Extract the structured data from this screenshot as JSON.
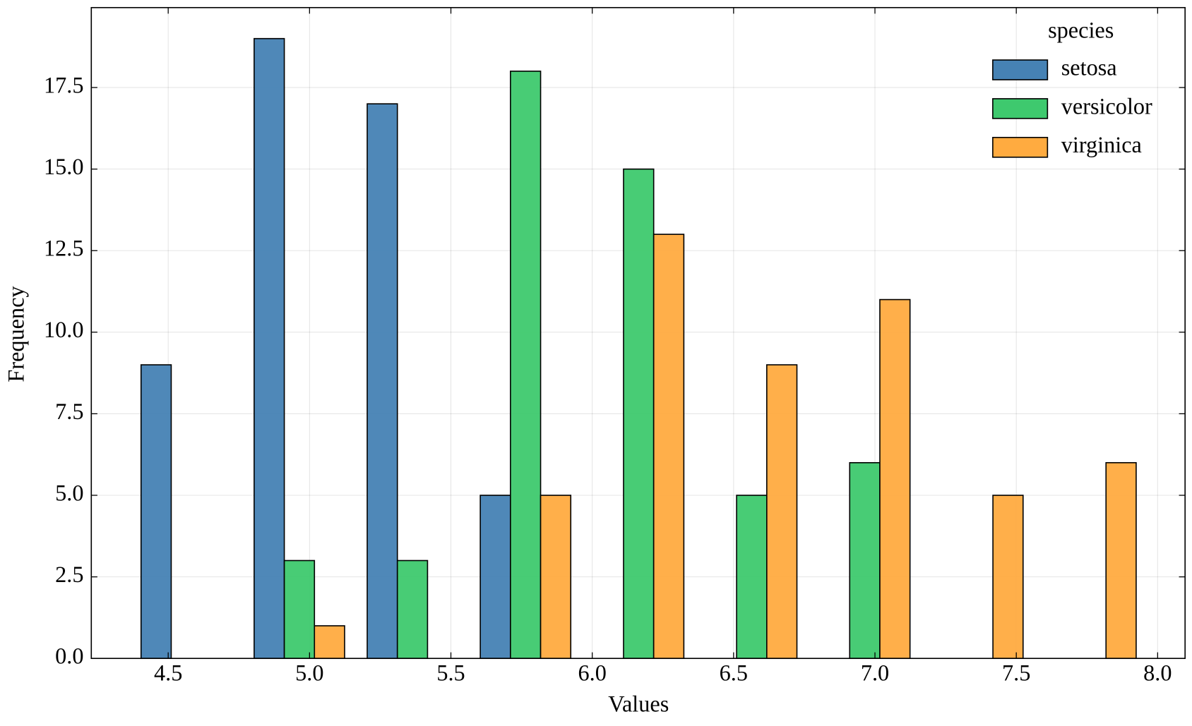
{
  "chart_data": {
    "type": "histogram",
    "xlabel": "Values",
    "ylabel": "Frequency",
    "bins": [
      4.3,
      4.7,
      5.1,
      5.5,
      5.9,
      6.3,
      6.7,
      7.1,
      7.5,
      7.9
    ],
    "series": [
      {
        "name": "setosa",
        "color": "#4682b4",
        "values": [
          9,
          19,
          17,
          5,
          0,
          0,
          0,
          0,
          0
        ]
      },
      {
        "name": "versicolor",
        "color": "#3ec96e",
        "values": [
          0,
          3,
          3,
          18,
          15,
          5,
          6,
          0,
          0
        ]
      },
      {
        "name": "virginica",
        "color": "#ffab40",
        "values": [
          0,
          1,
          0,
          5,
          13,
          9,
          11,
          5,
          6
        ]
      }
    ],
    "legend_title": "species",
    "legend": "upper right",
    "xlim": [
      4.228,
      8.097
    ],
    "ylim": [
      0,
      19.95
    ],
    "xticks": [
      4.5,
      {
        "value": 5.0,
        "label": "5.0"
      },
      5.5,
      {
        "value": 6.0,
        "label": "6.0"
      },
      6.5,
      {
        "value": 7.0,
        "label": "7.0"
      },
      7.5,
      {
        "value": 8.0,
        "label": "8.0"
      }
    ],
    "yticks": [
      {
        "value": 0,
        "label": "0.0"
      },
      2.5,
      {
        "value": 5,
        "label": "5.0"
      },
      7.5,
      {
        "value": 10,
        "label": "10.0"
      },
      12.5,
      {
        "value": 15,
        "label": "15.0"
      },
      17.5
    ],
    "grid": true
  }
}
